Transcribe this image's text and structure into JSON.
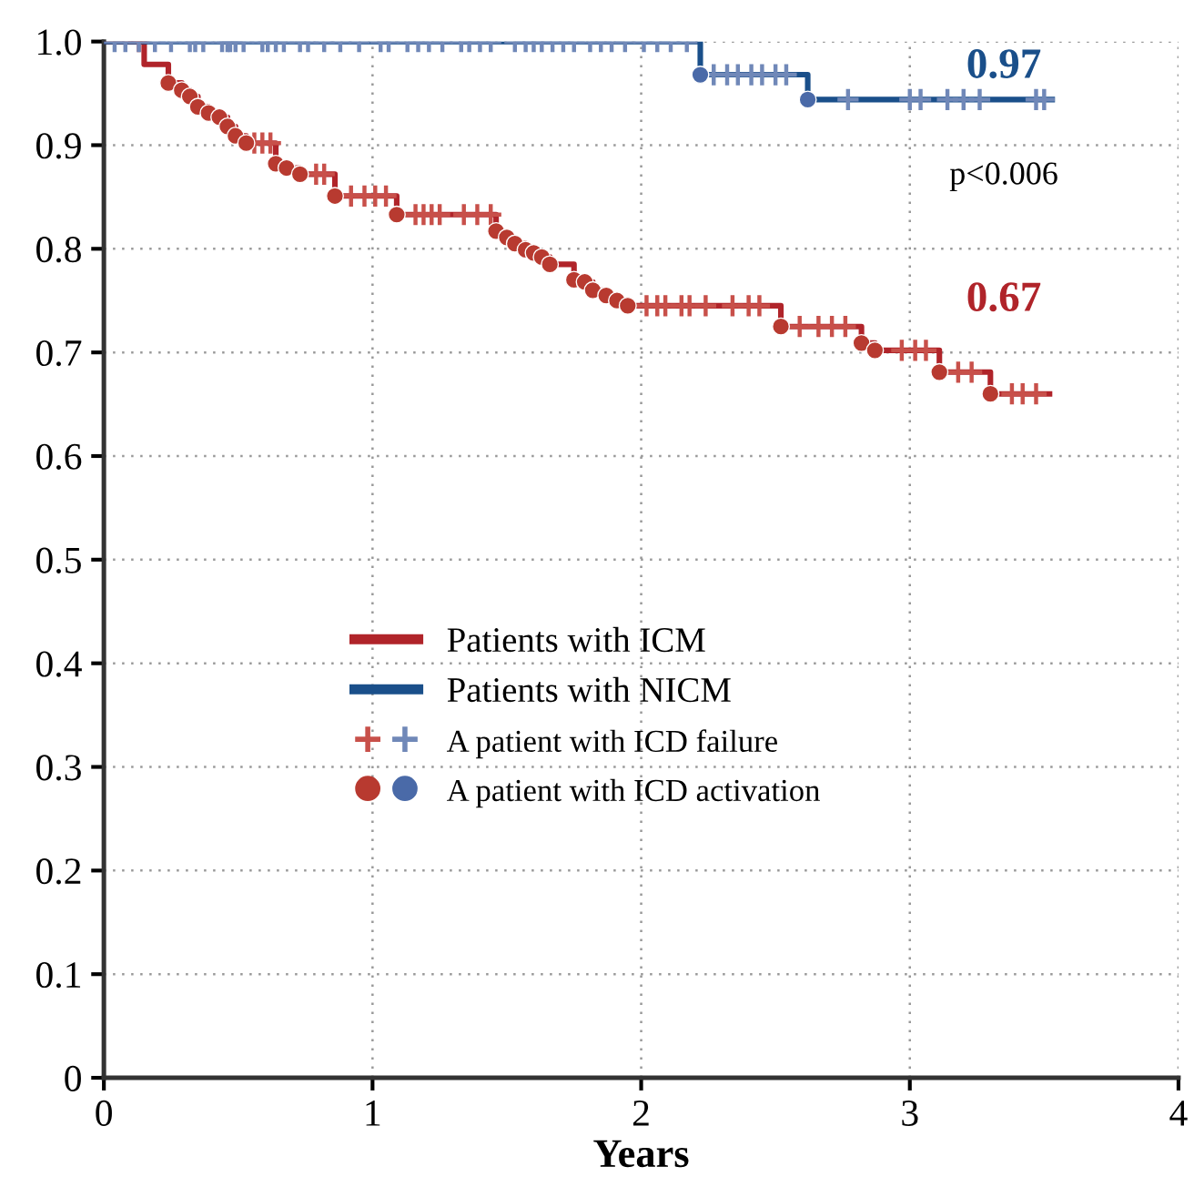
{
  "chart_data": {
    "type": "step",
    "xlabel": "Years",
    "xlim": [
      0,
      4
    ],
    "xticks": [
      0,
      1,
      2,
      3,
      4
    ],
    "ylim": [
      0,
      1
    ],
    "yticks": [
      0,
      0.1,
      0.2,
      0.3,
      0.4,
      0.5,
      0.6,
      0.7,
      0.8,
      0.9,
      {
        "value": 1,
        "label": "1.0"
      }
    ],
    "grid": true,
    "legend": "bottom",
    "line_style": "solid",
    "annotations": [
      "0.97",
      "p<0.006",
      "0.67"
    ],
    "series": [
      {
        "name": "Patients with ICM",
        "color": "#b0242a",
        "x": [
          0,
          0.15,
          0.24,
          0.29,
          0.32,
          0.35,
          0.39,
          0.43,
          0.46,
          0.49,
          0.53,
          0.64,
          0.68,
          0.73,
          0.86,
          1.09,
          1.46,
          1.5,
          1.53,
          1.57,
          1.6,
          1.63,
          1.66,
          1.75,
          1.79,
          1.82,
          1.87,
          1.91,
          1.95,
          2.52,
          2.82,
          2.87,
          3.11,
          3.3,
          3.52
        ],
        "values": [
          1.0,
          0.978,
          0.96,
          0.953,
          0.947,
          0.937,
          0.931,
          0.927,
          0.918,
          0.909,
          0.902,
          0.882,
          0.878,
          0.872,
          0.851,
          0.833,
          0.817,
          0.811,
          0.805,
          0.799,
          0.796,
          0.792,
          0.785,
          0.77,
          0.768,
          0.76,
          0.755,
          0.75,
          0.745,
          0.725,
          0.709,
          0.702,
          0.681,
          0.66,
          0.66
        ]
      },
      {
        "name": "Patients with NICM",
        "color": "#1a4f8a",
        "x": [
          0,
          2.22,
          2.62,
          3.53
        ],
        "values": [
          1.0,
          0.968,
          0.944,
          0.944
        ]
      },
      {
        "name": "A patient with ICD failure",
        "type": "scatter",
        "marker": "cross",
        "x": [
          0.13,
          0.56,
          0.59,
          0.62,
          0.79,
          0.82,
          0.92,
          0.97,
          1.01,
          1.05,
          1.16,
          1.19,
          1.22,
          1.25,
          1.34,
          1.39,
          1.44,
          2.02,
          2.06,
          2.09,
          2.15,
          2.18,
          2.24,
          2.34,
          2.4,
          2.44,
          2.59,
          2.66,
          2.71,
          2.76,
          2.97,
          3.02,
          3.06,
          3.18,
          3.23,
          3.38,
          3.42,
          3.47,
          0.04,
          0.08,
          0.13,
          0.19,
          0.25,
          0.32,
          0.34,
          0.37,
          0.44,
          0.46,
          0.47,
          0.49,
          0.52,
          0.59,
          0.61,
          0.64,
          0.67,
          0.73,
          0.76,
          0.82,
          0.88,
          0.95,
          1.03,
          1.06,
          1.13,
          1.17,
          1.21,
          1.26,
          1.33,
          1.36,
          1.4,
          1.44,
          1.53,
          1.57,
          1.6,
          1.63,
          1.67,
          1.71,
          1.75,
          1.81,
          1.85,
          1.89,
          1.94,
          2.01,
          2.06,
          2.11,
          2.17,
          2.27,
          2.32,
          2.36,
          2.41,
          2.45,
          2.5,
          2.54,
          2.77,
          3.0,
          3.04,
          3.14,
          3.2,
          3.26,
          3.47,
          3.5
        ],
        "values": [
          1.0,
          0.902,
          0.902,
          0.902,
          0.872,
          0.872,
          0.851,
          0.851,
          0.851,
          0.851,
          0.833,
          0.833,
          0.833,
          0.833,
          0.833,
          0.833,
          0.833,
          0.745,
          0.745,
          0.745,
          0.745,
          0.745,
          0.745,
          0.745,
          0.745,
          0.745,
          0.725,
          0.725,
          0.725,
          0.725,
          0.702,
          0.702,
          0.702,
          0.681,
          0.681,
          0.66,
          0.66,
          0.66,
          1,
          1,
          1,
          1,
          1,
          1,
          1,
          1,
          1,
          1,
          1,
          1,
          1,
          1,
          1,
          1,
          1,
          1,
          1,
          1,
          1,
          1,
          1,
          1,
          1,
          1,
          1,
          1,
          1,
          1,
          1,
          1,
          1,
          1,
          1,
          1,
          1,
          1,
          1,
          1,
          1,
          1,
          1,
          1,
          1,
          1,
          1,
          0.968,
          0.968,
          0.968,
          0.968,
          0.968,
          0.968,
          0.968,
          0.944,
          0.944,
          0.944,
          0.944,
          0.944,
          0.944,
          0.944,
          0.944
        ],
        "colors": [
          "#c8504a",
          "#c8504a",
          "#c8504a",
          "#c8504a",
          "#c8504a",
          "#c8504a",
          "#c8504a",
          "#c8504a",
          "#c8504a",
          "#c8504a",
          "#c8504a",
          "#c8504a",
          "#c8504a",
          "#c8504a",
          "#c8504a",
          "#c8504a",
          "#c8504a",
          "#c8504a",
          "#c8504a",
          "#c8504a",
          "#c8504a",
          "#c8504a",
          "#c8504a",
          "#c8504a",
          "#c8504a",
          "#c8504a",
          "#c8504a",
          "#c8504a",
          "#c8504a",
          "#c8504a",
          "#c8504a",
          "#c8504a",
          "#c8504a",
          "#c8504a",
          "#c8504a",
          "#c8504a",
          "#c8504a",
          "#c8504a",
          "#7088b8",
          "#7088b8",
          "#7088b8",
          "#7088b8",
          "#7088b8",
          "#7088b8",
          "#7088b8",
          "#7088b8",
          "#7088b8",
          "#7088b8",
          "#7088b8",
          "#7088b8",
          "#7088b8",
          "#7088b8",
          "#7088b8",
          "#7088b8",
          "#7088b8",
          "#7088b8",
          "#7088b8",
          "#7088b8",
          "#7088b8",
          "#7088b8",
          "#7088b8",
          "#7088b8",
          "#7088b8",
          "#7088b8",
          "#7088b8",
          "#7088b8",
          "#7088b8",
          "#7088b8",
          "#7088b8",
          "#7088b8",
          "#7088b8",
          "#7088b8",
          "#7088b8",
          "#7088b8",
          "#7088b8",
          "#7088b8",
          "#7088b8",
          "#7088b8",
          "#7088b8",
          "#7088b8",
          "#7088b8",
          "#7088b8",
          "#7088b8",
          "#7088b8",
          "#7088b8",
          "#7088b8",
          "#7088b8",
          "#7088b8",
          "#7088b8",
          "#7088b8",
          "#7088b8",
          "#7088b8",
          "#7088b8",
          "#7088b8",
          "#7088b8",
          "#7088b8",
          "#7088b8",
          "#7088b8",
          "#7088b8",
          "#7088b8"
        ]
      },
      {
        "name": "A patient with ICD activation",
        "type": "scatter",
        "marker": "circle",
        "x": [
          0.24,
          0.29,
          0.32,
          0.35,
          0.39,
          0.43,
          0.46,
          0.49,
          0.53,
          0.64,
          0.68,
          0.73,
          0.86,
          1.09,
          1.46,
          1.5,
          1.53,
          1.57,
          1.6,
          1.63,
          1.66,
          1.75,
          1.79,
          1.82,
          1.87,
          1.91,
          1.95,
          2.52,
          2.82,
          2.87,
          3.11,
          3.3,
          2.22,
          2.62
        ],
        "values": [
          0.96,
          0.953,
          0.947,
          0.937,
          0.931,
          0.927,
          0.918,
          0.909,
          0.902,
          0.882,
          0.878,
          0.872,
          0.851,
          0.833,
          0.817,
          0.811,
          0.805,
          0.799,
          0.796,
          0.792,
          0.785,
          0.77,
          0.768,
          0.76,
          0.755,
          0.75,
          0.745,
          0.725,
          0.709,
          0.702,
          0.681,
          0.66,
          0.968,
          0.944
        ],
        "colors": [
          "#b83a30",
          "#b83a30",
          "#b83a30",
          "#b83a30",
          "#b83a30",
          "#b83a30",
          "#b83a30",
          "#b83a30",
          "#b83a30",
          "#b83a30",
          "#b83a30",
          "#b83a30",
          "#b83a30",
          "#b83a30",
          "#b83a30",
          "#b83a30",
          "#b83a30",
          "#b83a30",
          "#b83a30",
          "#b83a30",
          "#b83a30",
          "#b83a30",
          "#b83a30",
          "#b83a30",
          "#b83a30",
          "#b83a30",
          "#b83a30",
          "#b83a30",
          "#b83a30",
          "#b83a30",
          "#b83a30",
          "#b83a30",
          "#4a6aa8",
          "#4a6aa8"
        ]
      }
    ]
  }
}
